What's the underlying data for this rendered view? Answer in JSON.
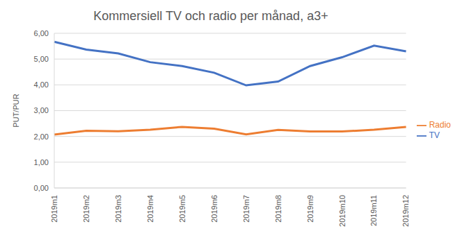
{
  "chart_data": {
    "type": "line",
    "title": "Kommersiell TV och radio per månad, a3+",
    "y_label": "PUT/PUR",
    "categories": [
      "2019m1",
      "2019m2",
      "2019m3",
      "2019m4",
      "2019m5",
      "2019m6",
      "2019m7",
      "2019m8",
      "2019m9",
      "2019m10",
      "2019m11",
      "2019m12"
    ],
    "series": [
      {
        "name": "TV",
        "color": "#4472c4",
        "values": [
          5.67,
          5.37,
          5.22,
          4.88,
          4.73,
          4.47,
          3.98,
          4.13,
          4.73,
          5.07,
          5.52,
          5.3
        ]
      },
      {
        "name": "Radio",
        "color": "#ed7d31",
        "values": [
          2.07,
          2.22,
          2.2,
          2.26,
          2.37,
          2.3,
          2.08,
          2.25,
          2.19,
          2.19,
          2.26,
          2.37
        ]
      }
    ],
    "ylim": [
      0,
      6
    ],
    "yticks": [
      {
        "value": 0,
        "label": "0,00"
      },
      {
        "value": 1,
        "label": "1,00"
      },
      {
        "value": 2,
        "label": "2,00"
      },
      {
        "value": 3,
        "label": "3,00"
      },
      {
        "value": 4,
        "label": "4,00"
      },
      {
        "value": 5,
        "label": "5,00"
      },
      {
        "value": 6,
        "label": "6,00"
      }
    ],
    "grid": true,
    "legend": "right"
  }
}
